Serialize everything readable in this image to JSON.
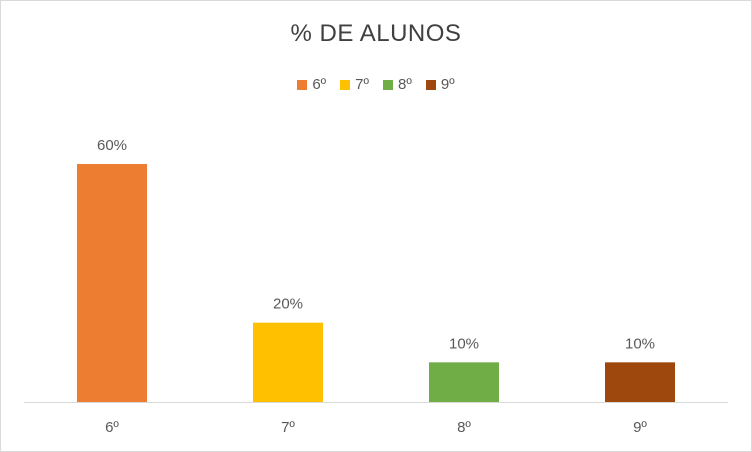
{
  "chart_data": {
    "type": "bar",
    "title": "% DE ALUNOS",
    "categories": [
      "6º",
      "7º",
      "8º",
      "9º"
    ],
    "values": [
      60,
      20,
      10,
      10
    ],
    "data_labels": [
      "60%",
      "20%",
      "10%",
      "10%"
    ],
    "colors": [
      "#ED7D31",
      "#FFC000",
      "#70AD47",
      "#9E480E"
    ],
    "legend": {
      "position": "top",
      "entries": [
        "6º",
        "7º",
        "8º",
        "9º"
      ]
    },
    "xlabel": "",
    "ylabel": "",
    "ylim": [
      0,
      60
    ],
    "grid": false
  }
}
